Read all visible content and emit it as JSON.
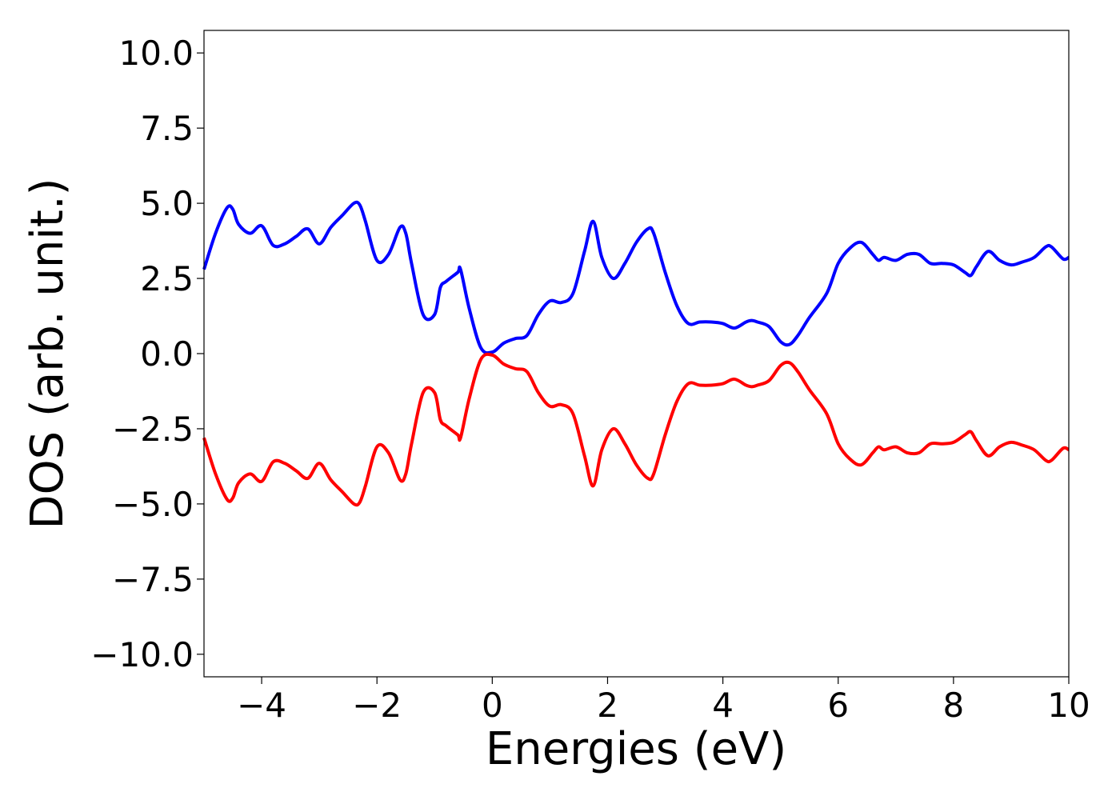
{
  "chart_data": {
    "type": "line",
    "title": "",
    "xlabel": "Energies (eV)",
    "ylabel": "DOS (arb. unit.)",
    "xlim": [
      -5,
      10
    ],
    "ylim": [
      -10.75,
      10.75
    ],
    "xticks": [
      -4,
      -2,
      0,
      2,
      4,
      6,
      8,
      10
    ],
    "xtick_labels": [
      "−4",
      "−2",
      "0",
      "2",
      "4",
      "6",
      "8",
      "10"
    ],
    "yticks": [
      10.0,
      7.5,
      5.0,
      2.5,
      0.0,
      -2.5,
      -5.0,
      -7.5,
      -10.0
    ],
    "ytick_labels": [
      "10.0",
      "7.5",
      "5.0",
      "2.5",
      "0.0",
      "−2.5",
      "−5.0",
      "−7.5",
      "−10.0"
    ],
    "grid": false,
    "legend": null,
    "series": [
      {
        "color": "#0000ff",
        "x": [
          -5.0,
          -4.8,
          -4.6,
          -4.5,
          -4.4,
          -4.2,
          -4.0,
          -3.8,
          -3.6,
          -3.4,
          -3.2,
          -3.0,
          -2.8,
          -2.6,
          -2.4,
          -2.3,
          -2.2,
          -2.0,
          -1.8,
          -1.6,
          -1.5,
          -1.4,
          -1.2,
          -1.0,
          -0.9,
          -0.8,
          -0.6,
          -0.55,
          -0.4,
          -0.2,
          0.0,
          0.2,
          0.4,
          0.6,
          0.8,
          1.0,
          1.2,
          1.4,
          1.6,
          1.75,
          1.9,
          2.1,
          2.3,
          2.5,
          2.7,
          2.8,
          3.0,
          3.2,
          3.4,
          3.6,
          3.8,
          4.0,
          4.2,
          4.4,
          4.5,
          4.6,
          4.8,
          5.0,
          5.15,
          5.3,
          5.5,
          5.8,
          6.0,
          6.2,
          6.4,
          6.6,
          6.7,
          6.8,
          7.0,
          7.2,
          7.4,
          7.6,
          7.8,
          8.0,
          8.2,
          8.3,
          8.4,
          8.6,
          8.8,
          9.0,
          9.2,
          9.4,
          9.6,
          9.7,
          9.9,
          10.0
        ],
        "y": [
          2.8,
          4.0,
          4.85,
          4.8,
          4.3,
          4.0,
          4.25,
          3.6,
          3.65,
          3.9,
          4.15,
          3.65,
          4.2,
          4.6,
          5.0,
          4.95,
          4.4,
          3.1,
          3.3,
          4.2,
          4.0,
          3.0,
          1.3,
          1.3,
          2.2,
          2.4,
          2.7,
          2.8,
          1.5,
          0.2,
          0.05,
          0.35,
          0.5,
          0.6,
          1.3,
          1.75,
          1.7,
          2.0,
          3.4,
          4.4,
          3.2,
          2.5,
          3.0,
          3.7,
          4.15,
          4.0,
          2.7,
          1.6,
          1.0,
          1.05,
          1.05,
          1.0,
          0.85,
          1.05,
          1.1,
          1.05,
          0.9,
          0.4,
          0.3,
          0.6,
          1.2,
          2.0,
          3.0,
          3.5,
          3.7,
          3.3,
          3.1,
          3.2,
          3.1,
          3.3,
          3.3,
          3.0,
          3.0,
          2.95,
          2.7,
          2.6,
          2.9,
          3.4,
          3.1,
          2.95,
          3.05,
          3.2,
          3.55,
          3.55,
          3.15,
          3.2
        ]
      },
      {
        "color": "#ff0000",
        "x": [
          -5.0,
          -4.8,
          -4.6,
          -4.5,
          -4.4,
          -4.2,
          -4.0,
          -3.8,
          -3.6,
          -3.4,
          -3.2,
          -3.0,
          -2.8,
          -2.6,
          -2.4,
          -2.3,
          -2.2,
          -2.0,
          -1.8,
          -1.6,
          -1.5,
          -1.4,
          -1.2,
          -1.0,
          -0.9,
          -0.8,
          -0.6,
          -0.55,
          -0.4,
          -0.2,
          0.0,
          0.2,
          0.4,
          0.6,
          0.8,
          1.0,
          1.2,
          1.4,
          1.6,
          1.75,
          1.9,
          2.1,
          2.3,
          2.5,
          2.7,
          2.8,
          3.0,
          3.2,
          3.4,
          3.6,
          3.8,
          4.0,
          4.2,
          4.4,
          4.5,
          4.6,
          4.8,
          5.0,
          5.15,
          5.3,
          5.5,
          5.8,
          6.0,
          6.2,
          6.4,
          6.6,
          6.7,
          6.8,
          7.0,
          7.2,
          7.4,
          7.6,
          7.8,
          8.0,
          8.2,
          8.3,
          8.4,
          8.6,
          8.8,
          9.0,
          9.2,
          9.4,
          9.6,
          9.7,
          9.9,
          10.0
        ],
        "y": [
          -2.8,
          -4.0,
          -4.85,
          -4.8,
          -4.3,
          -4.0,
          -4.25,
          -3.6,
          -3.65,
          -3.9,
          -4.15,
          -3.65,
          -4.2,
          -4.6,
          -5.0,
          -4.95,
          -4.4,
          -3.1,
          -3.3,
          -4.2,
          -4.0,
          -3.0,
          -1.3,
          -1.3,
          -2.2,
          -2.4,
          -2.7,
          -2.8,
          -1.5,
          -0.2,
          -0.05,
          -0.35,
          -0.5,
          -0.6,
          -1.3,
          -1.75,
          -1.7,
          -2.0,
          -3.4,
          -4.4,
          -3.2,
          -2.5,
          -3.0,
          -3.7,
          -4.15,
          -4.0,
          -2.7,
          -1.6,
          -1.0,
          -1.05,
          -1.05,
          -1.0,
          -0.85,
          -1.05,
          -1.1,
          -1.05,
          -0.9,
          -0.4,
          -0.3,
          -0.6,
          -1.2,
          -2.0,
          -3.0,
          -3.5,
          -3.7,
          -3.3,
          -3.1,
          -3.2,
          -3.1,
          -3.3,
          -3.3,
          -3.0,
          -3.0,
          -2.95,
          -2.7,
          -2.6,
          -2.9,
          -3.4,
          -3.1,
          -2.95,
          -3.05,
          -3.2,
          -3.55,
          -3.55,
          -3.15,
          -3.2
        ]
      }
    ]
  }
}
